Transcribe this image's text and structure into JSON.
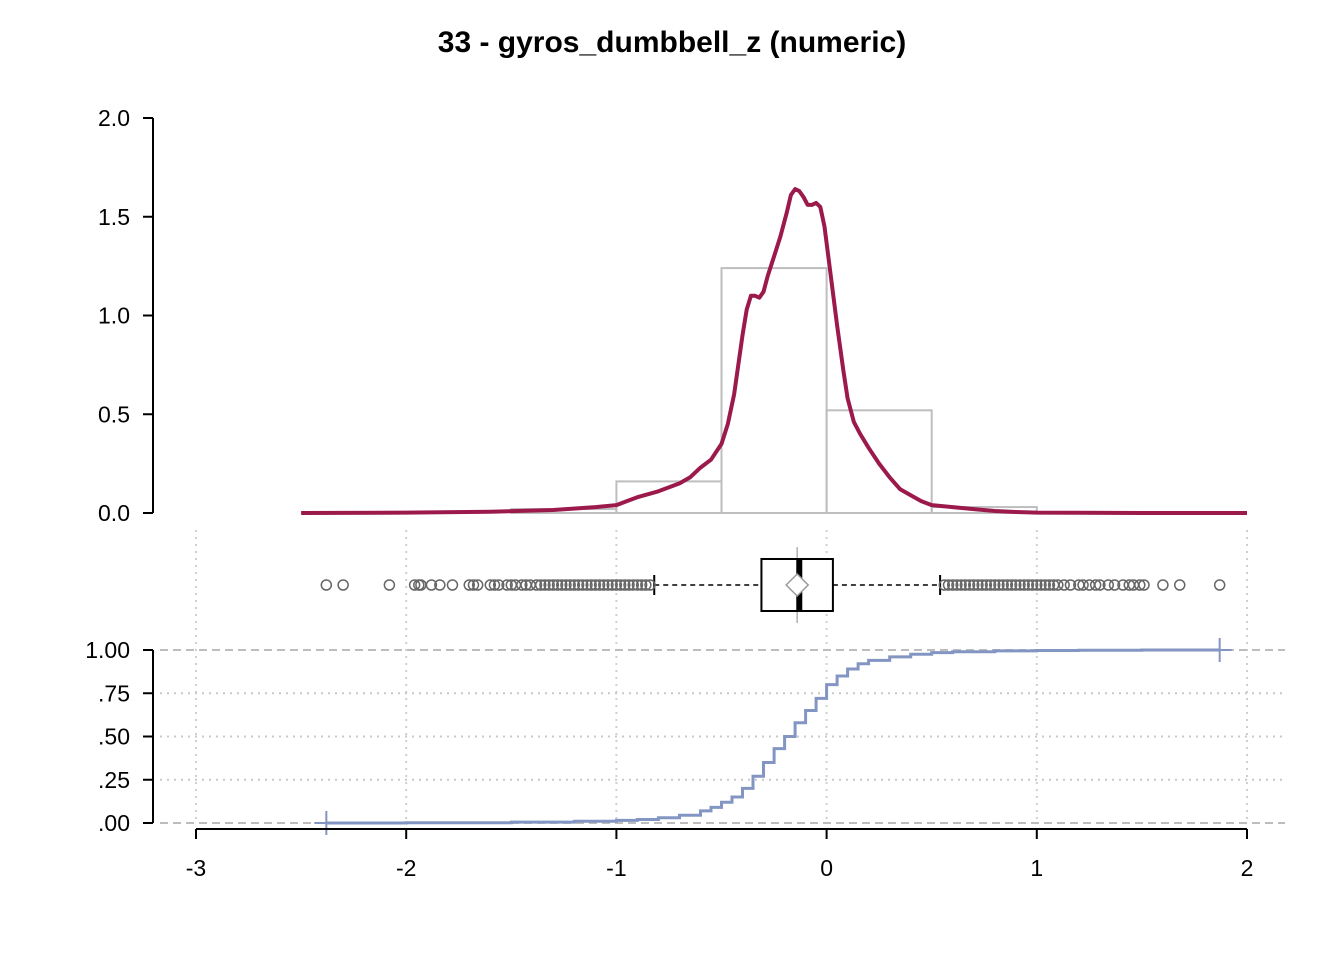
{
  "chart_data": {
    "title": "33 - gyros_dumbbell_z (numeric)",
    "xlabel": "",
    "x_axis": {
      "range": [
        -3,
        2
      ],
      "ticks": [
        -3,
        -2,
        -1,
        0,
        1,
        2
      ],
      "tick_labels": [
        "-3",
        "-2",
        "-1",
        "0",
        "1",
        "2"
      ]
    },
    "panels": [
      {
        "type": "histogram-density",
        "ylim": [
          0,
          2.0
        ],
        "y_ticks": [
          0,
          0.5,
          1.0,
          1.5,
          2.0
        ],
        "y_tick_labels": [
          "0.0",
          "0.5",
          "1.0",
          "1.5",
          "2.0"
        ],
        "histogram": {
          "bin_edges": [
            -1.5,
            -1.0,
            -0.5,
            0.0,
            0.5,
            1.0
          ],
          "densities": [
            0.02,
            0.16,
            1.24,
            0.52,
            0.03
          ],
          "color": "#bebebe"
        },
        "density_curve": {
          "color": "#9b1a4b",
          "x": [
            -2.5,
            -2.0,
            -1.6,
            -1.3,
            -1.1,
            -1.0,
            -0.95,
            -0.9,
            -0.8,
            -0.7,
            -0.65,
            -0.6,
            -0.55,
            -0.5,
            -0.47,
            -0.44,
            -0.42,
            -0.4,
            -0.38,
            -0.36,
            -0.34,
            -0.32,
            -0.3,
            -0.28,
            -0.25,
            -0.22,
            -0.19,
            -0.17,
            -0.15,
            -0.13,
            -0.11,
            -0.09,
            -0.07,
            -0.05,
            -0.03,
            -0.01,
            0.02,
            0.05,
            0.08,
            0.1,
            0.13,
            0.16,
            0.2,
            0.25,
            0.3,
            0.35,
            0.4,
            0.45,
            0.5,
            0.6,
            0.7,
            0.8,
            0.9,
            1.0,
            1.2,
            1.5,
            1.8,
            2.0
          ],
          "y": [
            0.0,
            0.002,
            0.006,
            0.015,
            0.03,
            0.04,
            0.06,
            0.08,
            0.11,
            0.15,
            0.18,
            0.23,
            0.27,
            0.35,
            0.45,
            0.6,
            0.75,
            0.9,
            1.03,
            1.1,
            1.1,
            1.09,
            1.12,
            1.2,
            1.3,
            1.4,
            1.52,
            1.61,
            1.64,
            1.63,
            1.6,
            1.56,
            1.56,
            1.57,
            1.55,
            1.45,
            1.2,
            0.95,
            0.72,
            0.58,
            0.46,
            0.4,
            0.33,
            0.25,
            0.18,
            0.12,
            0.09,
            0.06,
            0.04,
            0.03,
            0.02,
            0.01,
            0.005,
            0.002,
            0.001,
            0.0,
            0.0,
            0.0
          ]
        }
      },
      {
        "type": "boxplot",
        "q1": -0.31,
        "median": -0.13,
        "q3": 0.03,
        "mean": -0.14,
        "whisker_low": -0.82,
        "whisker_high": 0.54,
        "outliers_low": [
          -2.38,
          -2.3,
          -2.08,
          -1.96,
          -1.94,
          -1.93,
          -1.88,
          -1.84,
          -1.78,
          -1.7,
          -1.68,
          -1.66,
          -1.6,
          -1.58,
          -1.56,
          -1.52,
          -1.5,
          -1.48,
          -1.45,
          -1.43,
          -1.41,
          -1.38,
          -1.36,
          -1.34,
          -1.32,
          -1.3,
          -1.28,
          -1.26,
          -1.24,
          -1.22,
          -1.2,
          -1.18,
          -1.16,
          -1.14,
          -1.12,
          -1.1,
          -1.08,
          -1.06,
          -1.04,
          -1.02,
          -1.0,
          -0.98,
          -0.96,
          -0.94,
          -0.92,
          -0.9,
          -0.88,
          -0.86,
          -0.84
        ],
        "outliers_high": [
          0.56,
          0.58,
          0.6,
          0.62,
          0.64,
          0.66,
          0.68,
          0.7,
          0.72,
          0.74,
          0.76,
          0.78,
          0.8,
          0.82,
          0.84,
          0.86,
          0.88,
          0.9,
          0.92,
          0.94,
          0.96,
          0.98,
          1.0,
          1.02,
          1.04,
          1.06,
          1.08,
          1.1,
          1.13,
          1.16,
          1.2,
          1.22,
          1.25,
          1.28,
          1.3,
          1.34,
          1.37,
          1.41,
          1.44,
          1.46,
          1.49,
          1.51,
          1.6,
          1.68,
          1.87
        ]
      },
      {
        "type": "ecdf",
        "ylim": [
          0,
          1
        ],
        "y_ticks": [
          0,
          0.25,
          0.5,
          0.75,
          1.0
        ],
        "y_tick_labels": [
          ".00",
          ".25",
          ".50",
          ".75",
          "1.00"
        ],
        "color": "#8395c3",
        "x": [
          -2.38,
          -2.0,
          -1.5,
          -1.2,
          -1.0,
          -0.9,
          -0.8,
          -0.7,
          -0.6,
          -0.55,
          -0.5,
          -0.45,
          -0.4,
          -0.35,
          -0.3,
          -0.25,
          -0.2,
          -0.15,
          -0.1,
          -0.05,
          0.0,
          0.05,
          0.1,
          0.15,
          0.2,
          0.3,
          0.4,
          0.5,
          0.6,
          0.8,
          1.0,
          1.2,
          1.5,
          1.87
        ],
        "y": [
          0.0,
          0.002,
          0.005,
          0.01,
          0.015,
          0.02,
          0.03,
          0.045,
          0.07,
          0.09,
          0.12,
          0.15,
          0.2,
          0.27,
          0.35,
          0.43,
          0.5,
          0.58,
          0.65,
          0.72,
          0.8,
          0.85,
          0.89,
          0.92,
          0.94,
          0.96,
          0.975,
          0.985,
          0.99,
          0.995,
          0.997,
          0.999,
          1.0,
          1.0
        ]
      }
    ]
  }
}
